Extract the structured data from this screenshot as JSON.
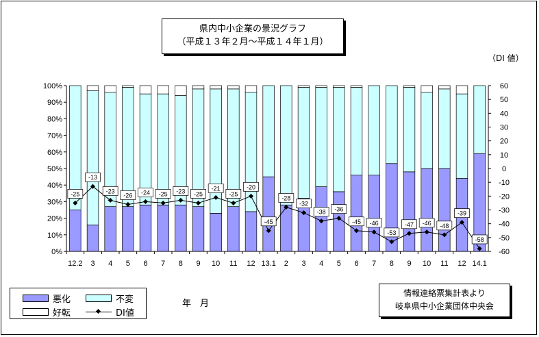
{
  "title_line1": "県内中小企業の景況グラフ",
  "title_line2": "（平成１３年２月～平成１４年１月）",
  "di_axis_unit": "（DI 値）",
  "x_unit": "年　月",
  "source_line1": "情報連絡票集計表より",
  "source_line2": "岐阜県中小企業団体中央会",
  "legend": {
    "worse": "悪化",
    "unchanged": "不変",
    "better": "好転",
    "di": "DI値"
  },
  "colors": {
    "worse": "#9999ff",
    "unchanged": "#ccffff",
    "better": "#ffffff",
    "line": "#000000"
  },
  "chart_data": {
    "type": "bar",
    "stacked": true,
    "categories": [
      "12.2",
      "3",
      "4",
      "5",
      "6",
      "7",
      "8",
      "9",
      "10",
      "11",
      "12",
      "13.1",
      "2",
      "3",
      "4",
      "5",
      "6",
      "7",
      "8",
      "9",
      "10",
      "11",
      "12",
      "14.1"
    ],
    "series": [
      {
        "name": "悪化",
        "values": [
          25,
          16,
          27,
          27,
          28,
          28,
          28,
          27,
          23,
          27,
          24,
          45,
          28,
          32,
          39,
          36,
          46,
          46,
          53,
          48,
          50,
          50,
          44,
          59
        ]
      },
      {
        "name": "不変",
        "values": [
          75,
          81,
          69,
          72,
          67,
          67,
          66,
          71,
          75,
          71,
          72,
          55,
          72,
          67,
          60,
          63,
          53,
          54,
          47,
          51,
          46,
          48,
          51,
          41
        ]
      },
      {
        "name": "好転",
        "values": [
          0,
          3,
          4,
          1,
          5,
          5,
          6,
          2,
          2,
          2,
          4,
          0,
          0,
          1,
          1,
          1,
          1,
          0,
          0,
          1,
          4,
          2,
          5,
          0
        ]
      }
    ],
    "line_series": {
      "name": "DI値",
      "values": [
        -25,
        -13,
        -23,
        -26,
        -24,
        -25,
        -23,
        -25,
        -21,
        -25,
        -20,
        -45,
        -28,
        -32,
        -38,
        -36,
        -45,
        -46,
        -53,
        -47,
        -46,
        -48,
        -39,
        -58
      ]
    },
    "y_left": {
      "ticks": [
        "0%",
        "10%",
        "20%",
        "30%",
        "40%",
        "50%",
        "60%",
        "70%",
        "80%",
        "90%",
        "100%"
      ],
      "range": [
        0,
        100
      ]
    },
    "y_right": {
      "ticks": [
        "-60",
        "-50",
        "-40",
        "-30",
        "-20",
        "-10",
        "0",
        "10",
        "20",
        "30",
        "40",
        "50",
        "60"
      ],
      "range": [
        -60,
        60
      ]
    },
    "grid": false,
    "legend_position": "bottom-left"
  }
}
